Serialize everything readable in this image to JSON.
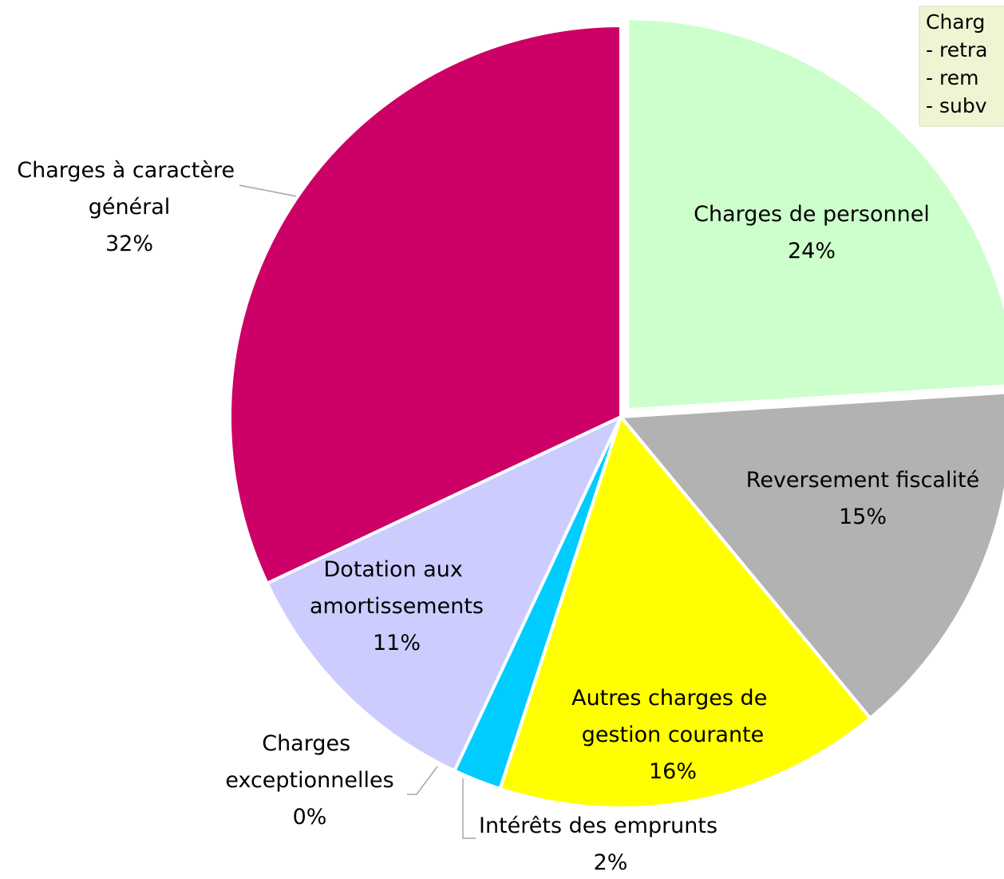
{
  "chart_data": {
    "type": "pie",
    "categories": [
      "Charges de personnel",
      "Reversement fiscalité",
      "Autres charges de gestion courante",
      "Intérêts des emprunts",
      "Charges exceptionnelles",
      "Dotation aux amortissements",
      "Charges à caractère général"
    ],
    "values": [
      24,
      15,
      16,
      2,
      0,
      11,
      32
    ],
    "value_labels": [
      "24%",
      "15%",
      "16%",
      "2%",
      "0%",
      "11%",
      "32%"
    ],
    "colors": [
      "#CCFFCC",
      "#B2B2B2",
      "#FFFF00",
      "#00CCFF",
      "#99CCFF",
      "#CCCCFF",
      "#CC0066"
    ],
    "annotation": [
      "Charg",
      "- retra",
      "-  rem",
      "- subv"
    ]
  }
}
